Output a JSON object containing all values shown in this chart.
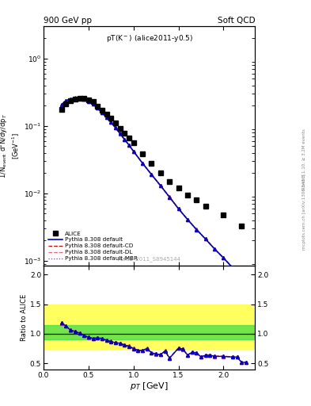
{
  "title_left": "900 GeV pp",
  "title_right": "Soft QCD",
  "plot_label": "pT(K ) (alice2011-y0.5)",
  "plot_label_super": "⁻",
  "watermark": "ALICE_2011_S8945144",
  "right_label_top": "Rivet 3.1.10, ≥ 3.2M events",
  "right_label_bot": "mcplots.cern.ch [arXiv:1306.3436]",
  "xlabel": "$p_T$ [GeV]",
  "ylabel_top": "1/N$_{event}$ d$^2$N/dy/dp$_T$",
  "ylabel_top2": "[GeV$^{-1}$]",
  "ylabel_bottom": "Ratio to ALICE",
  "alice_pt": [
    0.2,
    0.25,
    0.3,
    0.35,
    0.4,
    0.45,
    0.5,
    0.55,
    0.6,
    0.65,
    0.7,
    0.75,
    0.8,
    0.85,
    0.9,
    0.95,
    1.0,
    1.1,
    1.2,
    1.3,
    1.4,
    1.5,
    1.6,
    1.7,
    1.8,
    2.0,
    2.2
  ],
  "alice_y": [
    0.175,
    0.21,
    0.235,
    0.25,
    0.255,
    0.255,
    0.245,
    0.228,
    0.198,
    0.172,
    0.15,
    0.13,
    0.11,
    0.092,
    0.078,
    0.066,
    0.056,
    0.039,
    0.028,
    0.02,
    0.015,
    0.012,
    0.0095,
    0.008,
    0.0065,
    0.0048,
    0.0033
  ],
  "pythia_pt": [
    0.2,
    0.25,
    0.3,
    0.35,
    0.4,
    0.45,
    0.5,
    0.55,
    0.6,
    0.65,
    0.7,
    0.75,
    0.8,
    0.85,
    0.9,
    0.95,
    1.0,
    1.1,
    1.2,
    1.3,
    1.4,
    1.5,
    1.6,
    1.7,
    1.8,
    1.9,
    2.0,
    2.1,
    2.2,
    2.3
  ],
  "pythia_y": [
    0.207,
    0.237,
    0.25,
    0.26,
    0.258,
    0.248,
    0.23,
    0.21,
    0.185,
    0.158,
    0.134,
    0.113,
    0.094,
    0.077,
    0.063,
    0.052,
    0.042,
    0.028,
    0.019,
    0.013,
    0.0088,
    0.0059,
    0.0041,
    0.0029,
    0.0021,
    0.0015,
    0.0011,
    0.00079,
    0.00058,
    0.00043
  ],
  "ratio_pt": [
    0.2,
    0.25,
    0.3,
    0.35,
    0.4,
    0.45,
    0.5,
    0.55,
    0.6,
    0.65,
    0.7,
    0.75,
    0.8,
    0.85,
    0.9,
    0.95,
    1.0,
    1.05,
    1.1,
    1.15,
    1.2,
    1.25,
    1.3,
    1.35,
    1.4,
    1.5,
    1.55,
    1.6,
    1.65,
    1.7,
    1.75,
    1.8,
    1.85,
    1.9,
    2.0,
    2.1,
    2.15,
    2.2,
    2.25
  ],
  "ratio_default": [
    1.18,
    1.13,
    1.06,
    1.04,
    1.01,
    0.97,
    0.94,
    0.92,
    0.93,
    0.92,
    0.89,
    0.87,
    0.85,
    0.84,
    0.81,
    0.79,
    0.75,
    0.72,
    0.72,
    0.75,
    0.68,
    0.66,
    0.65,
    0.71,
    0.59,
    0.76,
    0.74,
    0.64,
    0.69,
    0.68,
    0.61,
    0.64,
    0.64,
    0.62,
    0.62,
    0.61,
    0.61,
    0.52,
    0.52
  ],
  "color_alice": "#000000",
  "color_default": "#0000cc",
  "color_cd": "#cc0000",
  "color_dl": "#dd6688",
  "color_mbr": "#8844cc",
  "xlim": [
    0.0,
    2.35
  ],
  "ylim_top_lo": 0.00085,
  "ylim_top_hi": 3.0,
  "ylim_bottom_lo": 0.4,
  "ylim_bottom_hi": 2.15,
  "yticks_bottom": [
    0.5,
    1.0,
    1.5,
    2.0
  ],
  "band_yellow_lo": 0.75,
  "band_yellow_hi": 1.5,
  "band_green_lo": 0.9,
  "band_green_hi": 1.15
}
